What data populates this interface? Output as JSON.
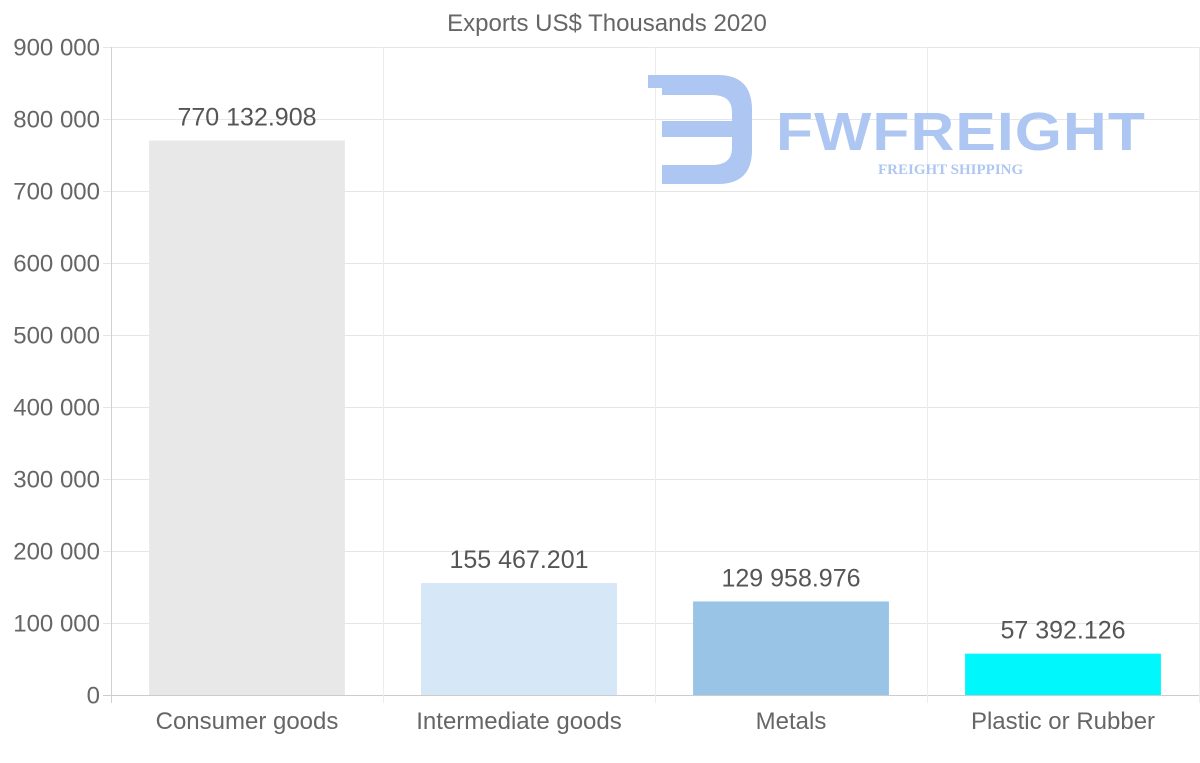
{
  "chart_data": {
    "type": "bar",
    "title": "Exports US$ Thousands 2020",
    "categories": [
      "Consumer goods",
      "Intermediate goods",
      "Metals",
      "Plastic or Rubber"
    ],
    "values": [
      770132.908,
      155467.201,
      129958.976,
      57392.126
    ],
    "value_labels": [
      "770 132.908",
      "155 467.201",
      "129 958.976",
      "57 392.126"
    ],
    "colors": [
      "#e8e8e8",
      "#d6e7f8",
      "#9ac4e6",
      "#00f7fb"
    ],
    "ylim": [
      0,
      900000
    ],
    "yticks": [
      0,
      100000,
      200000,
      300000,
      400000,
      500000,
      600000,
      700000,
      800000,
      900000
    ],
    "ytick_labels": [
      "0",
      "100 000",
      "200 000",
      "300 000",
      "400 000",
      "500 000",
      "600 000",
      "700 000",
      "800 000",
      "900 000"
    ],
    "xlabel": "",
    "ylabel": "",
    "grid": true,
    "legend": "none"
  },
  "watermark": {
    "brand": "FWFREIGHT",
    "tagline": "FREIGHT SHIPPING",
    "color": "#aec6f2"
  }
}
